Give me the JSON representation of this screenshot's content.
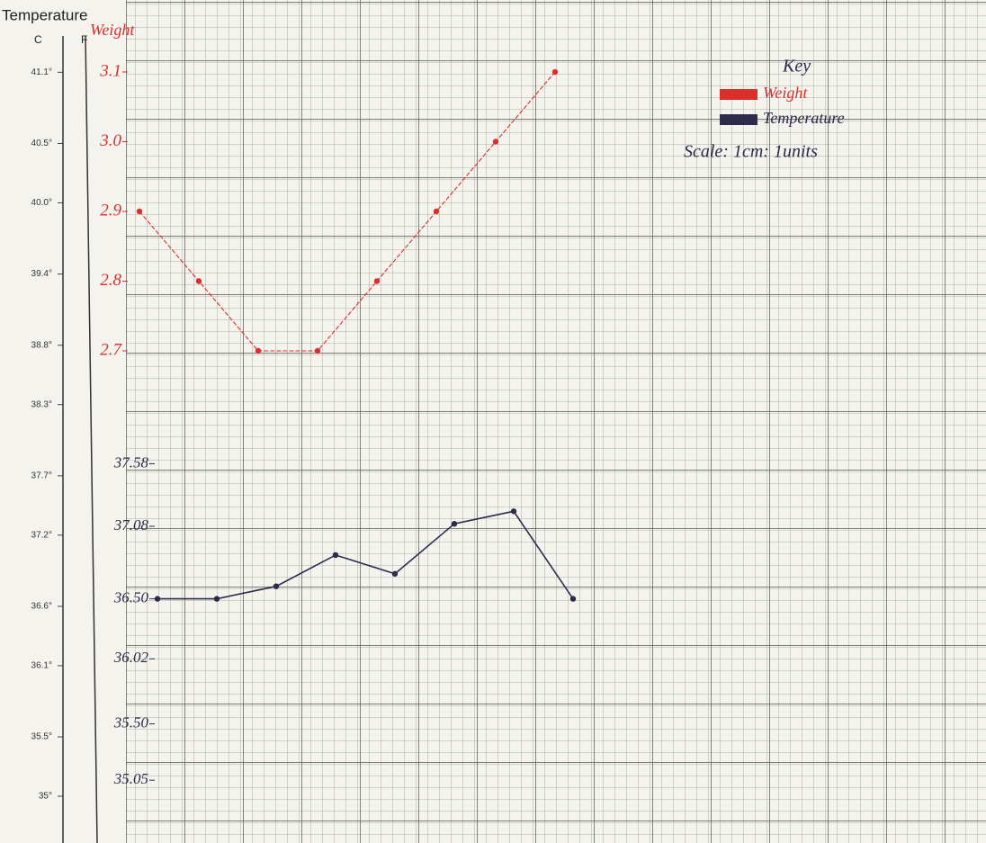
{
  "chart_data": {
    "type": "line",
    "ylabel": "Weight",
    "f_label": "F",
    "c_axis": {
      "heading": "Temperature",
      "label": "C",
      "lim": [
        34.64,
        41.69
      ],
      "ticks": [
        {
          "value": 41.1,
          "label": "41.1°"
        },
        {
          "value": 40.5,
          "label": "40.5°"
        },
        {
          "value": 40.0,
          "label": "40.0°"
        },
        {
          "value": 39.4,
          "label": "39.4°"
        },
        {
          "value": 38.8,
          "label": "38.8°"
        },
        {
          "value": 38.3,
          "label": "38.3°"
        },
        {
          "value": 37.7,
          "label": "37.7°"
        },
        {
          "value": 37.2,
          "label": "37.2°"
        },
        {
          "value": 36.6,
          "label": "36.6°"
        },
        {
          "value": 36.1,
          "label": "36.1°"
        },
        {
          "value": 35.5,
          "label": "35.5°"
        },
        {
          "value": 35,
          "label": "35°"
        }
      ]
    },
    "categories": [
      null,
      null,
      null,
      null,
      null,
      null,
      null,
      null
    ],
    "ylim": [
      2.0,
      3.2
    ],
    "yticks": [
      3.1,
      {
        "value": 3,
        "label": "3.0"
      },
      2.9,
      2.8,
      2.7
    ],
    "y2lim": [
      34.58,
      41.27
    ],
    "y2ticks": [
      37.58,
      37.08,
      {
        "value": 36.5,
        "label": "36.50"
      },
      36.02,
      {
        "value": 35.5,
        "label": "35.50"
      },
      35.05
    ],
    "series": [
      {
        "name": "Weight",
        "color": "#d9302c",
        "values": [
          2.9,
          2.8,
          2.7,
          2.7,
          2.8,
          2.9,
          3.0,
          3.1
        ]
      },
      {
        "name": "Temperature",
        "color": "#2e2a4a",
        "axis": "y2",
        "values": [
          36.5,
          36.5,
          36.6,
          36.85,
          36.7,
          37.1,
          37.2,
          36.5
        ]
      }
    ],
    "legend_title": "Key",
    "scale_note": "Scale: 1cm: 1units",
    "legend": "top-right",
    "grid": true
  }
}
